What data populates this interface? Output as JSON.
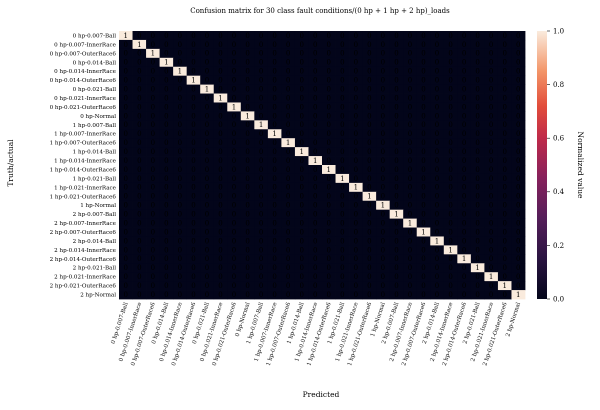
{
  "chart_data": {
    "type": "heatmap",
    "title": "Confusion matrix for 30 class fault conditions/(0 hp + 1 hp + 2 hp)_loads",
    "xlabel": "Predicted",
    "ylabel": "Truth/actual",
    "labels": [
      "0 hp-0.007-Ball",
      "0 hp-0.007-InnerRace",
      "0 hp-0.007-OuterRace6",
      "0 hp-0.014-Ball",
      "0 hp-0.014-InnerRace",
      "0 hp-0.014-OuterRace6",
      "0 hp-0.021-Ball",
      "0 hp-0.021-InnerRace",
      "0 hp-0.021-OuterRace6",
      "0 hp-Normal",
      "1 hp-0.007-Ball",
      "1 hp-0.007-InnerRace",
      "1 hp-0.007-OuterRace6",
      "1 hp-0.014-Ball",
      "1 hp-0.014-InnerRace",
      "1 hp-0.014-OuterRace6",
      "1 hp-0.021-Ball",
      "1 hp-0.021-InnerRace",
      "1 hp-0.021-OuterRace6",
      "1 hp-Normal",
      "2 hp-0.007-Ball",
      "2 hp-0.007-InnerRace",
      "2 hp-0.007-OuterRace6",
      "2 hp-0.014-Ball",
      "2 hp-0.014-InnerRace",
      "2 hp-0.014-OuterRace6",
      "2 hp-0.021-Ball",
      "2 hp-0.021-InnerRace",
      "2 hp-0.021-OuterRace6",
      "2 hp-Normal"
    ],
    "matrix_description": "identity",
    "diagonal_value": 1,
    "off_diagonal_value": 0,
    "colorbar": {
      "label": "Normalized value",
      "range": [
        0,
        1
      ],
      "ticks": [
        "0.0",
        "0.2",
        "0.4",
        "0.6",
        "0.8",
        "1.0"
      ]
    },
    "colors": {
      "low": "#03051a",
      "high": "#faebdd"
    }
  }
}
